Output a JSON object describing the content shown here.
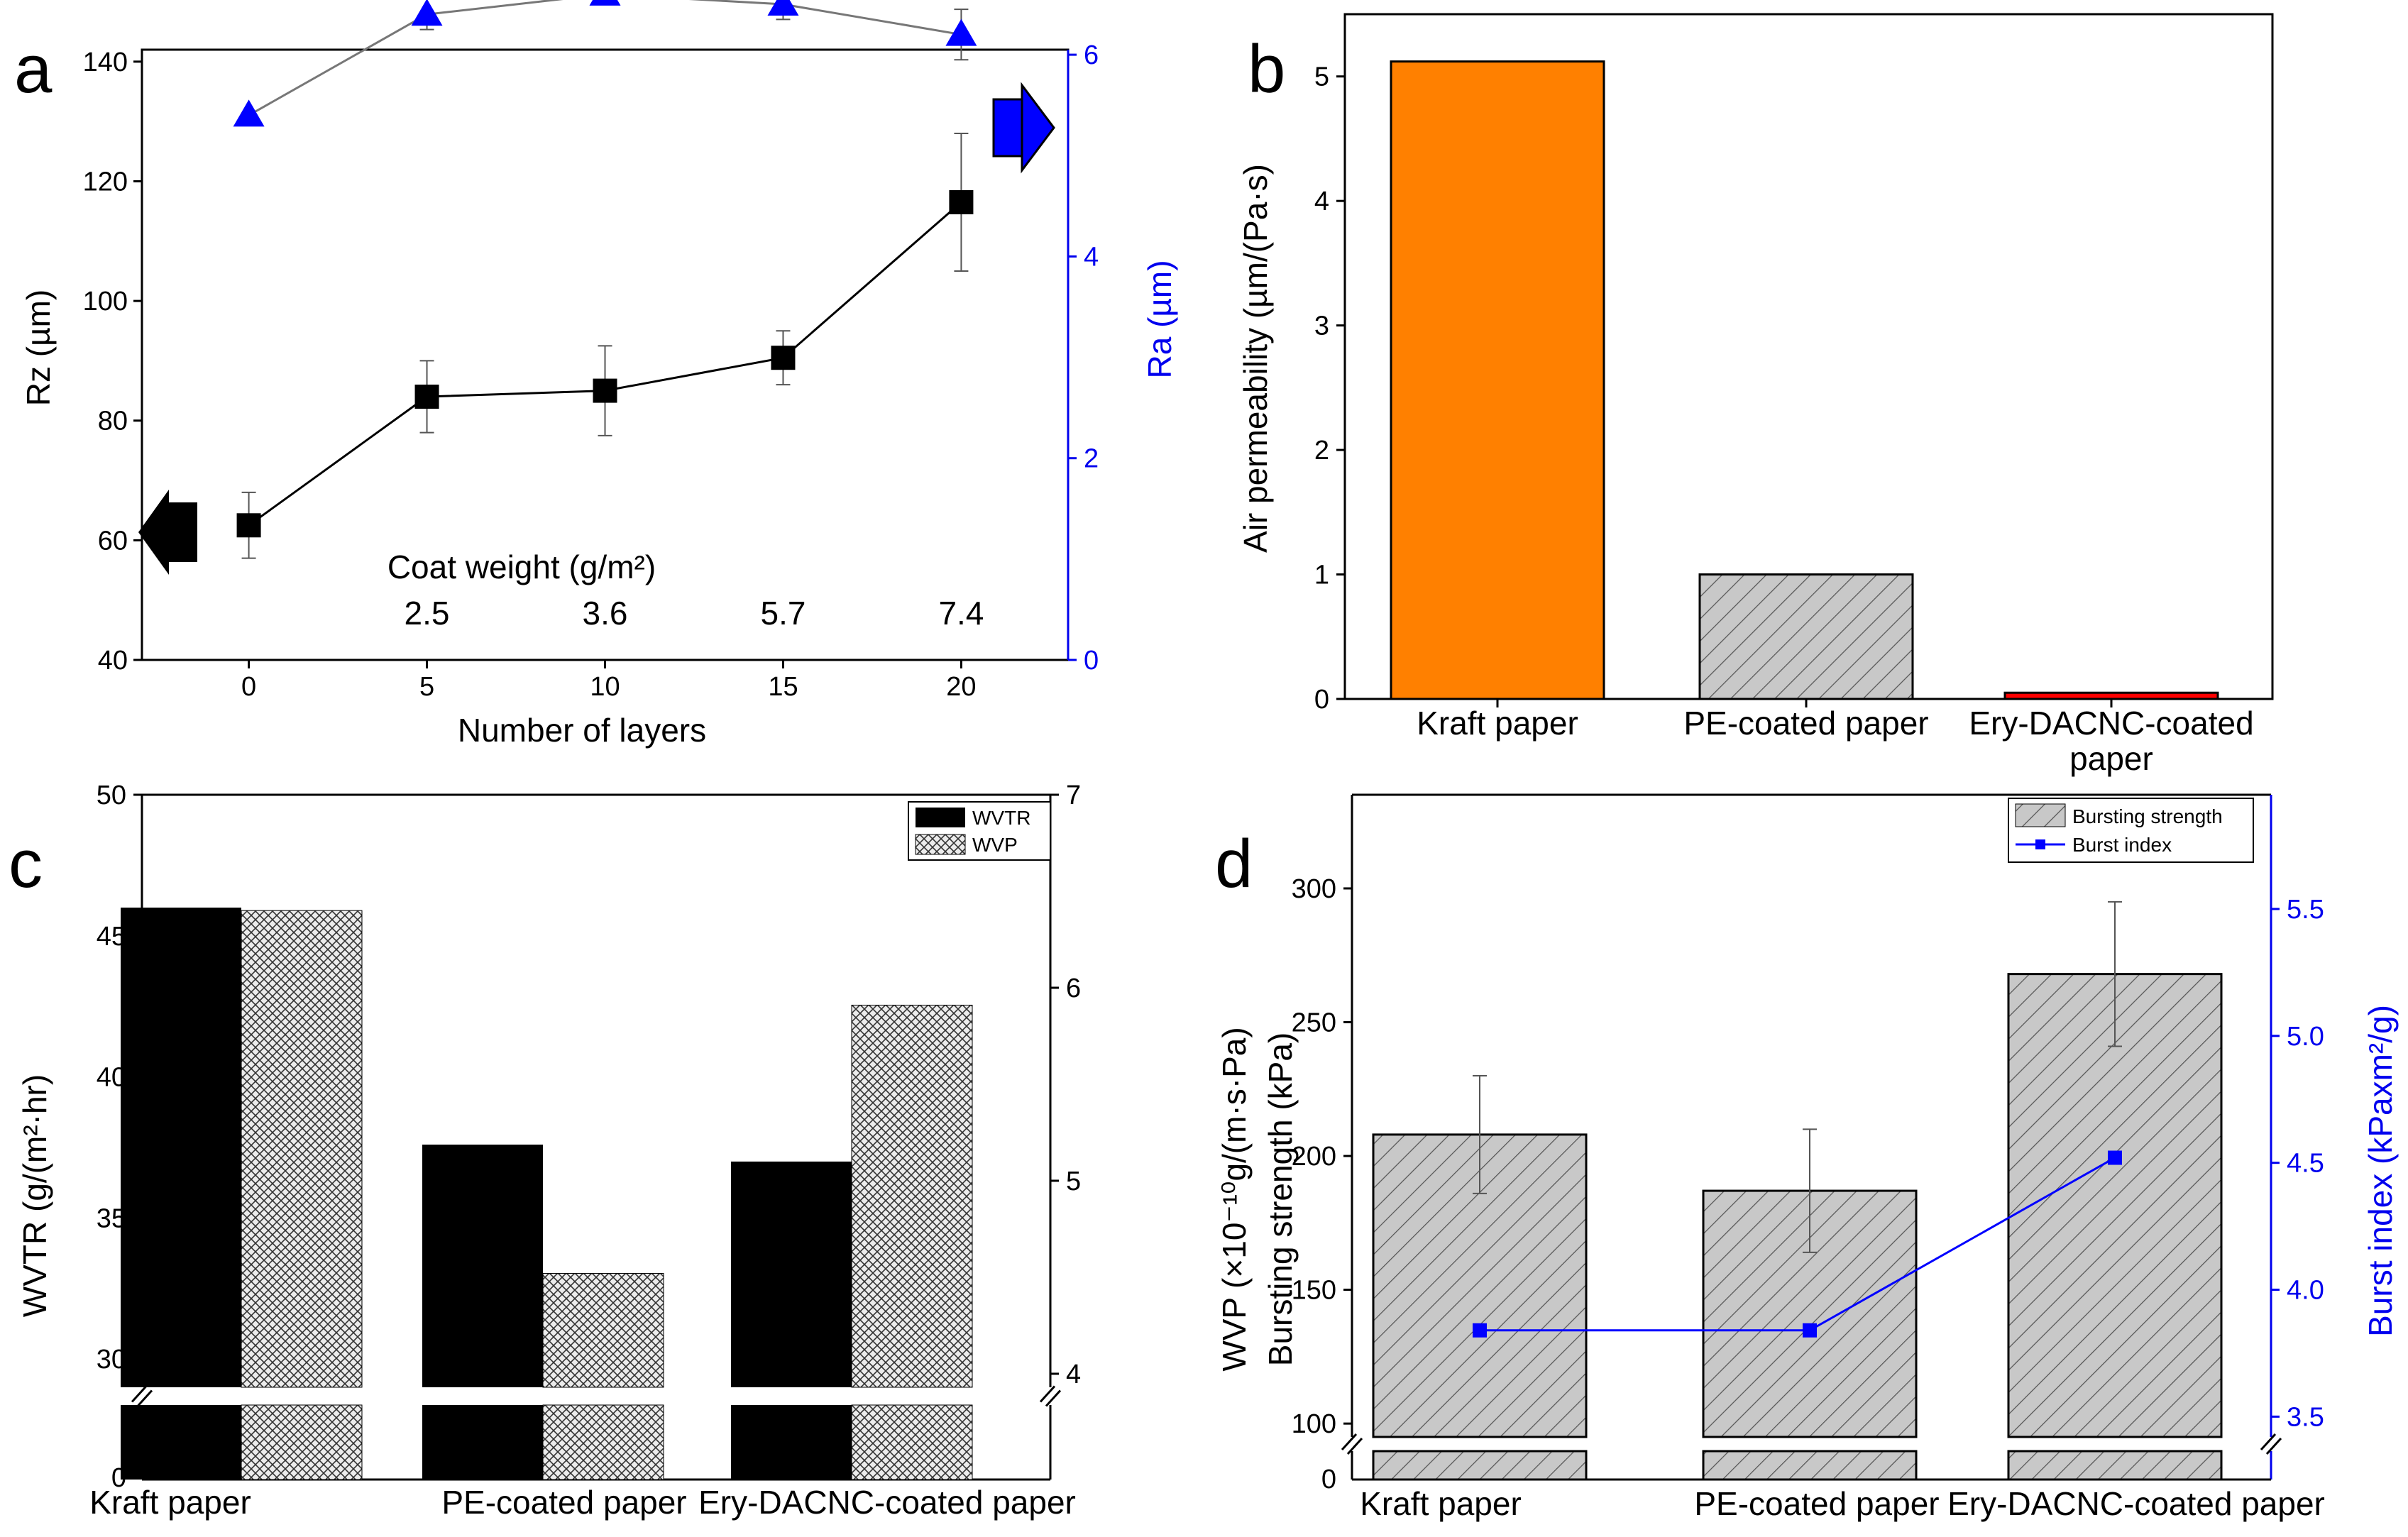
{
  "chart_data": [
    {
      "panel": "a",
      "type": "line",
      "xlabel": "Number of layers",
      "ylabel": "Rz  (µm)",
      "y2label": "Ra  (µm)",
      "xticks": [
        "0",
        "5",
        "10",
        "15",
        "20"
      ],
      "yticks": [
        "40",
        "60",
        "80",
        "100",
        "120",
        "140"
      ],
      "y2ticks": [
        "0",
        "2",
        "4",
        "6"
      ],
      "xlim": [
        -3,
        23
      ],
      "ylim": [
        40,
        142
      ],
      "y2lim": [
        0,
        6.05
      ],
      "annotation_title": "Coat weight (g/m²)",
      "annotation_values": [
        "2.5",
        "3.6",
        "5.7",
        "7.4"
      ],
      "series": [
        {
          "name": "Rz",
          "axis": "left",
          "marker": "square",
          "color": "#000000",
          "x": [
            0,
            5,
            10,
            15,
            20
          ],
          "values": [
            62.5,
            84.0,
            85.0,
            90.5,
            116.5
          ],
          "errors": [
            5.5,
            6.0,
            7.5,
            4.5,
            11.5
          ]
        },
        {
          "name": "Ra",
          "axis": "right",
          "marker": "triangle",
          "color": "#0000ff",
          "x": [
            0,
            5,
            10,
            15,
            20
          ],
          "values": [
            5.4,
            6.4,
            6.6,
            6.5,
            6.2
          ],
          "errors": [
            0,
            0.15,
            0,
            0.15,
            0.25
          ]
        }
      ]
    },
    {
      "panel": "b",
      "type": "bar",
      "categories": [
        "Kraft paper",
        "PE-coated paper",
        "Ery-DACNC-coated paper"
      ],
      "values": [
        5.12,
        1.0,
        0.05
      ],
      "colors": [
        "#ff8000",
        "#c8c8c8",
        "#ff0000"
      ],
      "ylabel": "Air permeability (µm/(Pa·s)",
      "yticks": [
        "0",
        "1",
        "2",
        "3",
        "4",
        "5"
      ],
      "ylim": [
        0,
        5.5
      ]
    },
    {
      "panel": "c",
      "type": "bar",
      "categories": [
        "Kraft paper",
        "PE-coated paper",
        "Ery-DACNC-coated paper"
      ],
      "ylabel": "WVTR (g/(m²·hr)",
      "y2label": "WVP (×10⁻¹⁰g/(m·s·Pa)",
      "yticks": [
        "30",
        "35",
        "40",
        "45",
        "50"
      ],
      "y2ticks": [
        "4",
        "5",
        "6",
        "7"
      ],
      "ylim": [
        29,
        50
      ],
      "y2lim": [
        3.93,
        7
      ],
      "axis_break_label": "0",
      "series": [
        {
          "name": "WVTR",
          "axis": "left",
          "values": [
            46.0,
            37.6,
            37.0
          ]
        },
        {
          "name": "WVP",
          "axis": "right",
          "values": [
            6.4,
            4.52,
            5.91
          ]
        }
      ]
    },
    {
      "panel": "d",
      "type": "bar",
      "categories": [
        "Kraft paper",
        "PE-coated paper",
        "Ery-DACNC-coated paper"
      ],
      "ylabel": "Bursting strength (kPa)",
      "y2label": "Burst index (kPaxm²/g)",
      "yticks": [
        "100",
        "150",
        "200",
        "250",
        "300"
      ],
      "y2ticks": [
        "3.5",
        "4.0",
        "4.5",
        "5.0",
        "5.5"
      ],
      "ylim": [
        95,
        335
      ],
      "y2lim": [
        3.42,
        5.95
      ],
      "axis_break_label": "0",
      "series": [
        {
          "name": "Bursting strength",
          "axis": "left",
          "type": "bar",
          "values": [
            208,
            187,
            268
          ],
          "errors": [
            22,
            23,
            27
          ]
        },
        {
          "name": "Burst index",
          "axis": "right",
          "type": "line",
          "values": [
            3.84,
            3.84,
            4.52
          ],
          "color": "#0000ff"
        }
      ]
    }
  ]
}
